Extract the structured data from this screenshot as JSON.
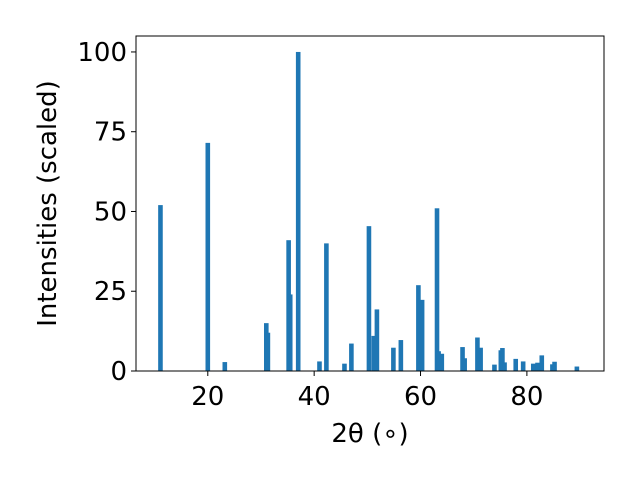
{
  "chart_data": {
    "type": "bar",
    "title": "",
    "xlabel": "2θ (∘)",
    "ylabel": "Intensities (scaled)",
    "xlim": [
      6.5,
      94.5
    ],
    "ylim": [
      0,
      105
    ],
    "xticks": [
      20,
      40,
      60,
      80
    ],
    "yticks": [
      0,
      25,
      50,
      75,
      100
    ],
    "bar_color": "#1f77b4",
    "grid": false,
    "series": [
      {
        "x": [
          11.1,
          20.0,
          23.2,
          31.0,
          31.3,
          35.2,
          35.5,
          37.0,
          41.0,
          42.3,
          45.7,
          47.0,
          50.3,
          51.2,
          51.8,
          54.9,
          56.3,
          59.6,
          60.3,
          63.1,
          63.4,
          64.0,
          67.9,
          68.3,
          70.7,
          71.3,
          73.9,
          75.1,
          75.4,
          75.8,
          77.9,
          79.3,
          81.2,
          82.0,
          82.8,
          84.8,
          85.2,
          89.4
        ],
        "y": [
          52,
          71.5,
          2.8,
          15,
          12,
          41,
          24,
          100,
          3,
          40,
          2.3,
          8.6,
          45.4,
          11,
          19.3,
          7.3,
          9.7,
          26.9,
          22.3,
          51,
          6.2,
          5.4,
          7.5,
          4,
          10.5,
          7.3,
          2,
          6.5,
          7.2,
          2.7,
          3.8,
          3,
          2.3,
          2.6,
          4.9,
          2.1,
          2.9,
          1.4
        ]
      }
    ]
  }
}
